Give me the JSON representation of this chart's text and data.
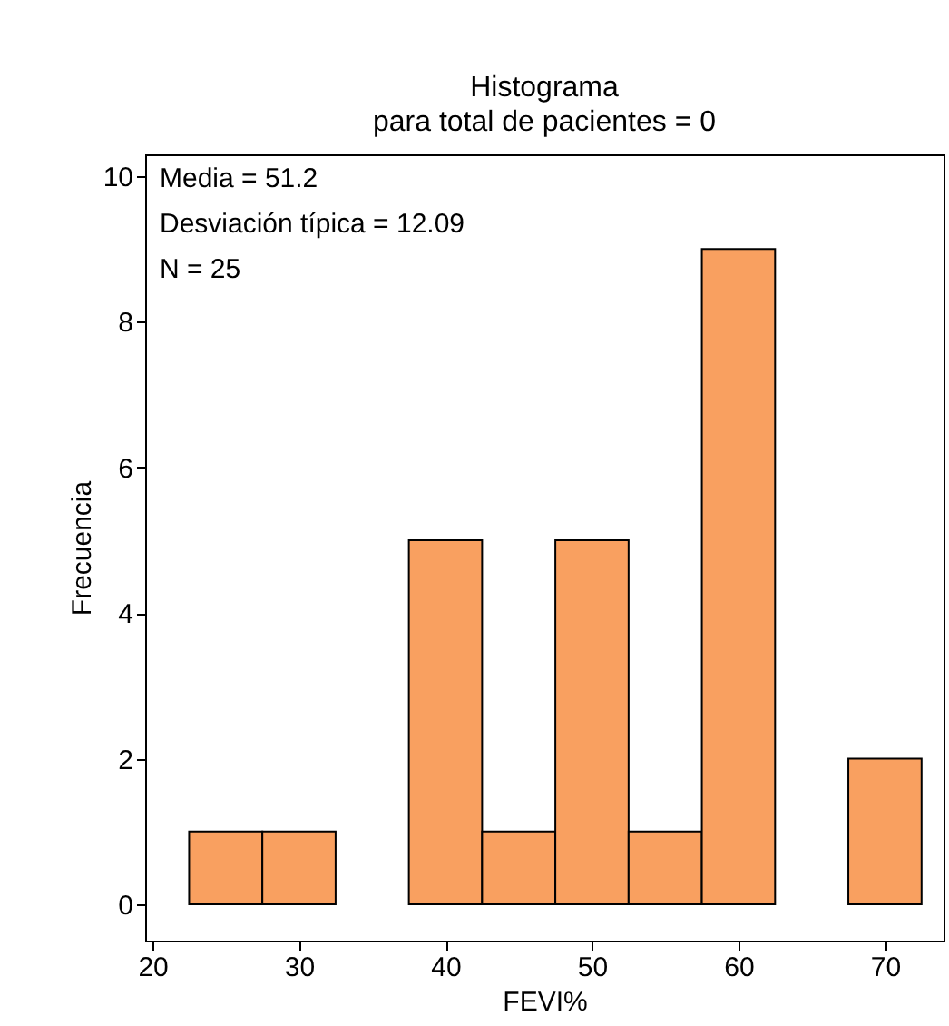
{
  "chart_data": {
    "type": "histogram",
    "title": "Histograma",
    "subtitle": "para total de pacientes = 0",
    "xlabel": "FEVI%",
    "ylabel": "Frecuencia",
    "bins": [
      22.5,
      27.5,
      32.5,
      37.5,
      42.5,
      47.5,
      52.5,
      57.5,
      62.5,
      67.5,
      72.5
    ],
    "values": [
      1,
      1,
      0,
      5,
      1,
      5,
      1,
      9,
      0,
      2
    ],
    "color": "#f9a060",
    "xlim": [
      19.5,
      74
    ],
    "xticks": [
      20,
      30,
      40,
      50,
      60,
      70
    ],
    "ylim": [
      -0.5,
      10.3
    ],
    "yticks": [
      0,
      2,
      4,
      6,
      8,
      10
    ],
    "annotations": [
      "Media = 51.2",
      "Desviación típica = 12.09",
      "N = 25"
    ],
    "grid": false
  }
}
